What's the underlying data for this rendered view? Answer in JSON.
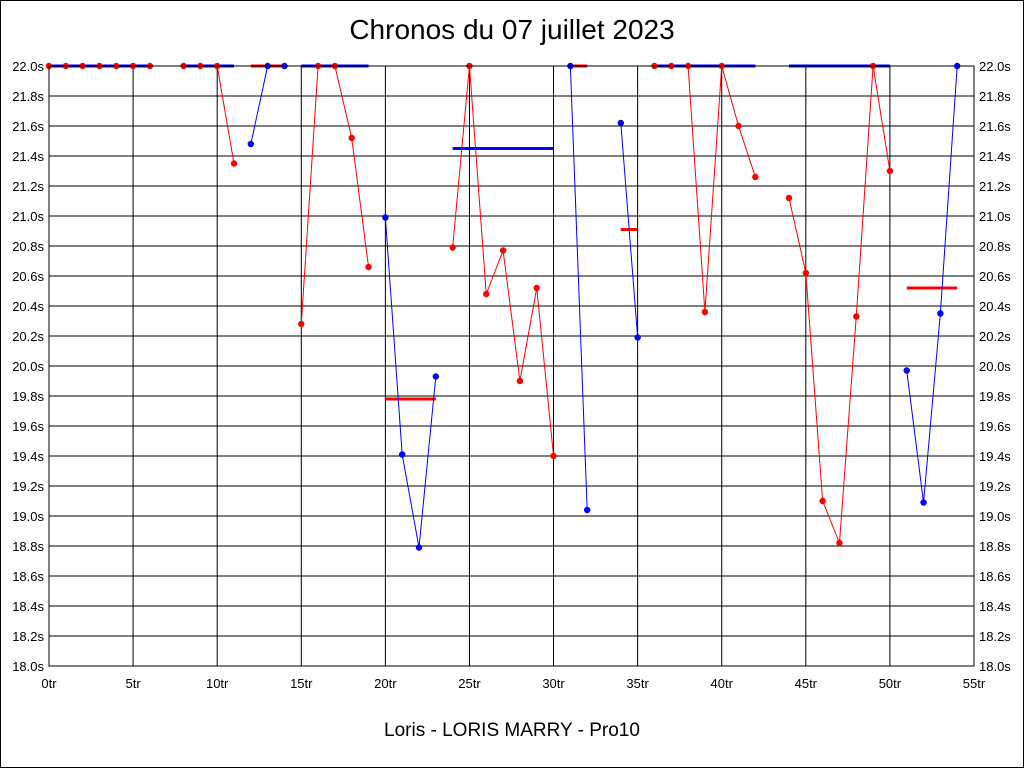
{
  "chart_data": {
    "type": "line",
    "title": "Chronos du 07 juillet 2023",
    "subtitle": "Loris - LORIS MARRY - Pro10",
    "xlim": [
      0,
      55
    ],
    "ylim": [
      18.0,
      22.0
    ],
    "x_ticks": [
      0,
      5,
      10,
      15,
      20,
      25,
      30,
      35,
      40,
      45,
      50,
      55
    ],
    "x_tick_labels": [
      "0tr",
      "5tr",
      "10tr",
      "15tr",
      "20tr",
      "25tr",
      "30tr",
      "35tr",
      "40tr",
      "45tr",
      "50tr",
      "55tr"
    ],
    "y_ticks": [
      18.0,
      18.2,
      18.4,
      18.6,
      18.8,
      19.0,
      19.2,
      19.4,
      19.6,
      19.8,
      20.0,
      20.2,
      20.4,
      20.6,
      20.8,
      21.0,
      21.2,
      21.4,
      21.6,
      21.8,
      22.0
    ],
    "y_tick_labels": [
      "18.0s",
      "18.2s",
      "18.4s",
      "18.6s",
      "18.8s",
      "19.0s",
      "19.2s",
      "19.4s",
      "19.6s",
      "19.8s",
      "20.0s",
      "20.2s",
      "20.4s",
      "20.6s",
      "20.8s",
      "21.0s",
      "21.2s",
      "21.4s",
      "21.6s",
      "21.8s",
      "22.0s"
    ],
    "grid": true,
    "segments": [
      {
        "color": "#ff0000",
        "points": [
          [
            0,
            22.0
          ],
          [
            1,
            22.0
          ],
          [
            2,
            22.0
          ],
          [
            3,
            22.0
          ],
          [
            4,
            22.0
          ],
          [
            5,
            22.0
          ],
          [
            6,
            22.0
          ]
        ],
        "mean": {
          "x0": 0,
          "x1": 6,
          "y": 22.0
        }
      },
      {
        "color": "#ff0000",
        "points": [
          [
            8,
            22.0
          ],
          [
            9,
            22.0
          ],
          [
            10,
            22.0
          ],
          [
            11,
            21.35
          ]
        ],
        "mean": {
          "x0": 8,
          "x1": 11,
          "y": 22.0
        }
      },
      {
        "color": "#0000ff",
        "points": [
          [
            12,
            21.48
          ],
          [
            13,
            22.0
          ],
          [
            14,
            22.0
          ]
        ],
        "mean": {
          "x0": 12,
          "x1": 14,
          "y": 22.0
        }
      },
      {
        "color": "#ff0000",
        "points": [
          [
            15,
            20.28
          ],
          [
            16,
            22.0
          ],
          [
            17,
            22.0
          ],
          [
            18,
            21.52
          ],
          [
            19,
            20.66
          ]
        ],
        "mean": {
          "x0": 15,
          "x1": 19,
          "y": 22.0
        }
      },
      {
        "color": "#0000ff",
        "points": [
          [
            20,
            20.99
          ],
          [
            21,
            19.41
          ],
          [
            22,
            18.79
          ],
          [
            23,
            19.93
          ]
        ],
        "mean": {
          "x0": 20,
          "x1": 23,
          "y": 19.78
        }
      },
      {
        "color": "#ff0000",
        "points": [
          [
            24,
            20.79
          ],
          [
            25,
            22.0
          ],
          [
            26,
            20.48
          ],
          [
            27,
            20.77
          ],
          [
            28,
            19.9
          ],
          [
            29,
            20.52
          ],
          [
            30,
            19.4
          ]
        ],
        "mean": {
          "x0": 24,
          "x1": 30,
          "y": 21.45
        }
      },
      {
        "color": "#0000ff",
        "points": [
          [
            31,
            22.0
          ],
          [
            32,
            19.04
          ]
        ],
        "mean": {
          "x0": 31,
          "x1": 32,
          "y": 22.0
        }
      },
      {
        "color": "#0000ff",
        "points": [
          [
            34,
            21.62
          ],
          [
            35,
            20.19
          ]
        ],
        "mean": {
          "x0": 34,
          "x1": 35,
          "y": 20.91
        }
      },
      {
        "color": "#ff0000",
        "points": [
          [
            36,
            22.0
          ],
          [
            37,
            22.0
          ],
          [
            38,
            22.0
          ],
          [
            39,
            20.36
          ],
          [
            40,
            22.0
          ],
          [
            41,
            21.6
          ],
          [
            42,
            21.26
          ]
        ],
        "mean": {
          "x0": 36,
          "x1": 42,
          "y": 22.0
        }
      },
      {
        "color": "#ff0000",
        "points": [
          [
            44,
            21.12
          ],
          [
            45,
            20.62
          ],
          [
            46,
            19.1
          ],
          [
            47,
            18.82
          ],
          [
            48,
            20.33
          ],
          [
            49,
            22.0
          ],
          [
            50,
            21.3
          ]
        ],
        "mean": {
          "x0": 44,
          "x1": 50,
          "y": 22.0
        }
      },
      {
        "color": "#0000ff",
        "points": [
          [
            51,
            19.97
          ],
          [
            52,
            19.09
          ],
          [
            53,
            20.35
          ],
          [
            54,
            22.0
          ]
        ],
        "mean": {
          "x0": 51,
          "x1": 54,
          "y": 20.52
        }
      }
    ],
    "mean_color_overrides": [
      {
        "segment": 0,
        "color": "#0000ff"
      },
      {
        "segment": 1,
        "color": "#0000ff"
      },
      {
        "segment": 2,
        "color": "#ff0000"
      },
      {
        "segment": 3,
        "color": "#0000ff"
      },
      {
        "segment": 4,
        "color": "#ff0000"
      },
      {
        "segment": 5,
        "color": "#0000ff"
      },
      {
        "segment": 6,
        "color": "#ff0000"
      },
      {
        "segment": 7,
        "color": "#ff0000"
      },
      {
        "segment": 8,
        "color": "#0000ff"
      },
      {
        "segment": 9,
        "color": "#0000ff"
      },
      {
        "segment": 10,
        "color": "#ff0000"
      }
    ]
  }
}
